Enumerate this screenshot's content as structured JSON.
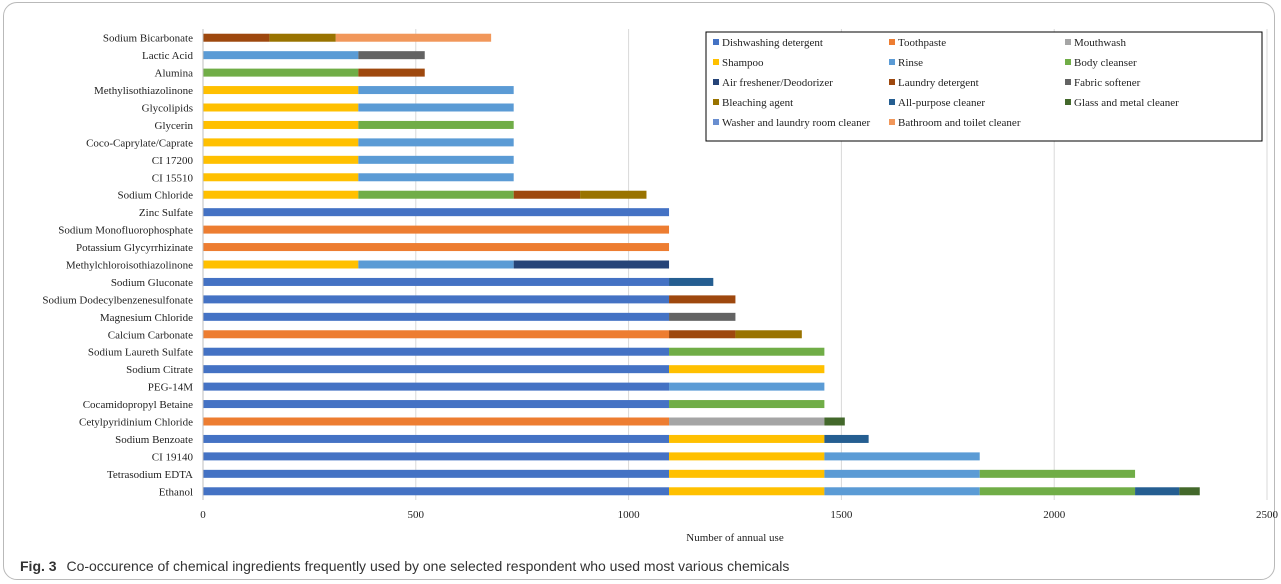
{
  "chart_data": {
    "type": "bar",
    "orientation": "horizontal",
    "stacked": true,
    "xlabel": "Number of annual use",
    "xlim": [
      0,
      2500
    ],
    "xticks": [
      "0",
      "500",
      "1000",
      "1500",
      "2000",
      "2500"
    ],
    "grid": "vertical",
    "legend_position": "top-right",
    "categories": [
      "Sodium Bicarbonate",
      "Lactic Acid",
      "Alumina",
      "Methylisothiazolinone",
      "Glycolipids",
      "Glycerin",
      "Coco-Caprylate/Caprate",
      "CI 17200",
      "CI 15510",
      "Sodium Chloride",
      "Zinc Sulfate",
      "Sodium Monofluorophosphate",
      "Potassium Glycyrrhizinate",
      "Methylchloroisothiazolinone",
      "Sodium Gluconate",
      "Sodium Dodecylbenzenesulfonate",
      "Magnesium Chloride",
      "Calcium Carbonate",
      "Sodium Laureth Sulfate",
      "Sodium Citrate",
      "PEG-14M",
      "Cocamidopropyl Betaine",
      "Cetylpyridinium Chloride",
      "Sodium Benzoate",
      "CI 19140",
      "Tetrasodium EDTA",
      "Ethanol"
    ],
    "series": [
      {
        "name": "Dishwashing detergent",
        "color": "#4472C4",
        "values": [
          0,
          0,
          0,
          0,
          0,
          0,
          0,
          0,
          0,
          0,
          1095,
          0,
          0,
          0,
          1095,
          1095,
          1095,
          0,
          1095,
          1095,
          1095,
          1095,
          0,
          1095,
          1095,
          1095,
          1095
        ]
      },
      {
        "name": "Toothpaste",
        "color": "#ED7D31",
        "values": [
          0,
          0,
          0,
          0,
          0,
          0,
          0,
          0,
          0,
          0,
          0,
          1095,
          1095,
          0,
          0,
          0,
          0,
          1095,
          0,
          0,
          0,
          0,
          1095,
          0,
          0,
          0,
          0
        ]
      },
      {
        "name": "Mouthwash",
        "color": "#A5A5A5",
        "values": [
          0,
          0,
          0,
          0,
          0,
          0,
          0,
          0,
          0,
          0,
          0,
          0,
          0,
          0,
          0,
          0,
          0,
          0,
          0,
          0,
          0,
          0,
          365,
          0,
          0,
          0,
          0
        ]
      },
      {
        "name": "Shampoo",
        "color": "#FFC000",
        "values": [
          0,
          0,
          0,
          365,
          365,
          365,
          365,
          365,
          365,
          365,
          0,
          0,
          0,
          365,
          0,
          0,
          0,
          0,
          0,
          365,
          0,
          0,
          0,
          365,
          365,
          365,
          365
        ]
      },
      {
        "name": "Rinse",
        "color": "#5B9BD5",
        "values": [
          0,
          365,
          0,
          365,
          365,
          0,
          365,
          365,
          365,
          0,
          0,
          0,
          0,
          365,
          0,
          0,
          0,
          0,
          0,
          0,
          365,
          0,
          0,
          0,
          365,
          365,
          365
        ]
      },
      {
        "name": "Body cleanser",
        "color": "#70AD47",
        "values": [
          0,
          0,
          365,
          0,
          0,
          365,
          0,
          0,
          0,
          365,
          0,
          0,
          0,
          0,
          0,
          0,
          0,
          0,
          365,
          0,
          0,
          365,
          0,
          0,
          0,
          365,
          365
        ]
      },
      {
        "name": "Air freshener/Deodorizer",
        "color": "#264478",
        "values": [
          0,
          0,
          0,
          0,
          0,
          0,
          0,
          0,
          0,
          0,
          0,
          0,
          0,
          365,
          0,
          0,
          0,
          0,
          0,
          0,
          0,
          0,
          0,
          0,
          0,
          0,
          0
        ]
      },
      {
        "name": "Laundry detergent",
        "color": "#9E480E",
        "values": [
          156,
          0,
          156,
          0,
          0,
          0,
          0,
          0,
          0,
          156,
          0,
          0,
          0,
          0,
          0,
          156,
          0,
          156,
          0,
          0,
          0,
          0,
          0,
          0,
          0,
          0,
          0
        ]
      },
      {
        "name": "Fabric softener",
        "color": "#636363",
        "values": [
          0,
          156,
          0,
          0,
          0,
          0,
          0,
          0,
          0,
          0,
          0,
          0,
          0,
          0,
          0,
          0,
          156,
          0,
          0,
          0,
          0,
          0,
          0,
          0,
          0,
          0,
          0
        ]
      },
      {
        "name": "Bleaching agent",
        "color": "#997300",
        "values": [
          156,
          0,
          0,
          0,
          0,
          0,
          0,
          0,
          0,
          156,
          0,
          0,
          0,
          0,
          0,
          0,
          0,
          156,
          0,
          0,
          0,
          0,
          0,
          0,
          0,
          0,
          0
        ]
      },
      {
        "name": "All-purpose cleaner",
        "color": "#255E91",
        "values": [
          0,
          0,
          0,
          0,
          0,
          0,
          0,
          0,
          0,
          0,
          0,
          0,
          0,
          0,
          104,
          0,
          0,
          0,
          0,
          0,
          0,
          0,
          0,
          104,
          0,
          0,
          104
        ]
      },
      {
        "name": "Glass and metal cleaner",
        "color": "#43682B",
        "values": [
          0,
          0,
          0,
          0,
          0,
          0,
          0,
          0,
          0,
          0,
          0,
          0,
          0,
          0,
          0,
          0,
          0,
          0,
          0,
          0,
          0,
          0,
          48,
          0,
          0,
          0,
          48
        ]
      },
      {
        "name": "Washer and laundry room cleaner",
        "color": "#698ED0",
        "values": [
          0,
          0,
          0,
          0,
          0,
          0,
          0,
          0,
          0,
          0,
          0,
          0,
          0,
          0,
          0,
          0,
          0,
          0,
          0,
          0,
          0,
          0,
          0,
          0,
          0,
          0,
          0
        ]
      },
      {
        "name": "Bathroom and toilet cleaner",
        "color": "#F1975A",
        "values": [
          365,
          0,
          0,
          0,
          0,
          0,
          0,
          0,
          0,
          0,
          0,
          0,
          0,
          0,
          0,
          0,
          0,
          0,
          0,
          0,
          0,
          0,
          0,
          0,
          0,
          0,
          0
        ]
      }
    ]
  },
  "caption": {
    "label": "Fig. 3",
    "text": "Co-occurence of chemical ingredients frequently used by one selected respondent who used most various chemicals"
  }
}
